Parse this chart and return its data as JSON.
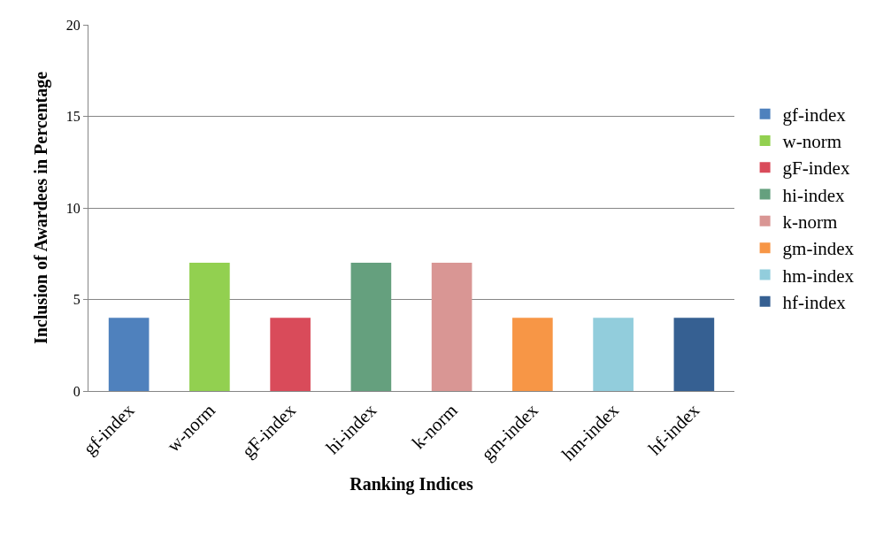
{
  "chart_data": {
    "type": "bar",
    "xlabel": "Ranking Indices",
    "ylabel": "Inclusion of Awardees in Percentage",
    "categories": [
      "gf-index",
      "w-norm",
      "gF-index",
      "hi-index",
      "k-norm",
      "gm-index",
      "hm-index",
      "hf-index"
    ],
    "series": [
      {
        "name": "gf-index",
        "color": "#4f81bd",
        "values": [
          4,
          null,
          null,
          null,
          null,
          null,
          null,
          null
        ]
      },
      {
        "name": "w-norm",
        "color": "#92d050",
        "values": [
          null,
          7,
          null,
          null,
          null,
          null,
          null,
          null
        ]
      },
      {
        "name": "gF-index",
        "color": "#d94b5a",
        "values": [
          null,
          null,
          4,
          null,
          null,
          null,
          null,
          null
        ]
      },
      {
        "name": "hi-index",
        "color": "#65a07e",
        "values": [
          null,
          null,
          null,
          7,
          null,
          null,
          null,
          null
        ]
      },
      {
        "name": "k-norm",
        "color": "#d99694",
        "values": [
          null,
          null,
          null,
          null,
          7,
          null,
          null,
          null
        ]
      },
      {
        "name": "gm-index",
        "color": "#f79646",
        "values": [
          null,
          null,
          null,
          null,
          null,
          4,
          null,
          null
        ]
      },
      {
        "name": "hm-index",
        "color": "#92cddc",
        "values": [
          null,
          null,
          null,
          null,
          null,
          null,
          4,
          null
        ]
      },
      {
        "name": "hf-index",
        "color": "#366092",
        "values": [
          null,
          null,
          null,
          null,
          null,
          null,
          null,
          4
        ]
      }
    ],
    "ylim": [
      0,
      20
    ],
    "yticks": [
      0,
      5,
      10,
      15,
      20
    ],
    "grid": "y",
    "legend": "right"
  }
}
